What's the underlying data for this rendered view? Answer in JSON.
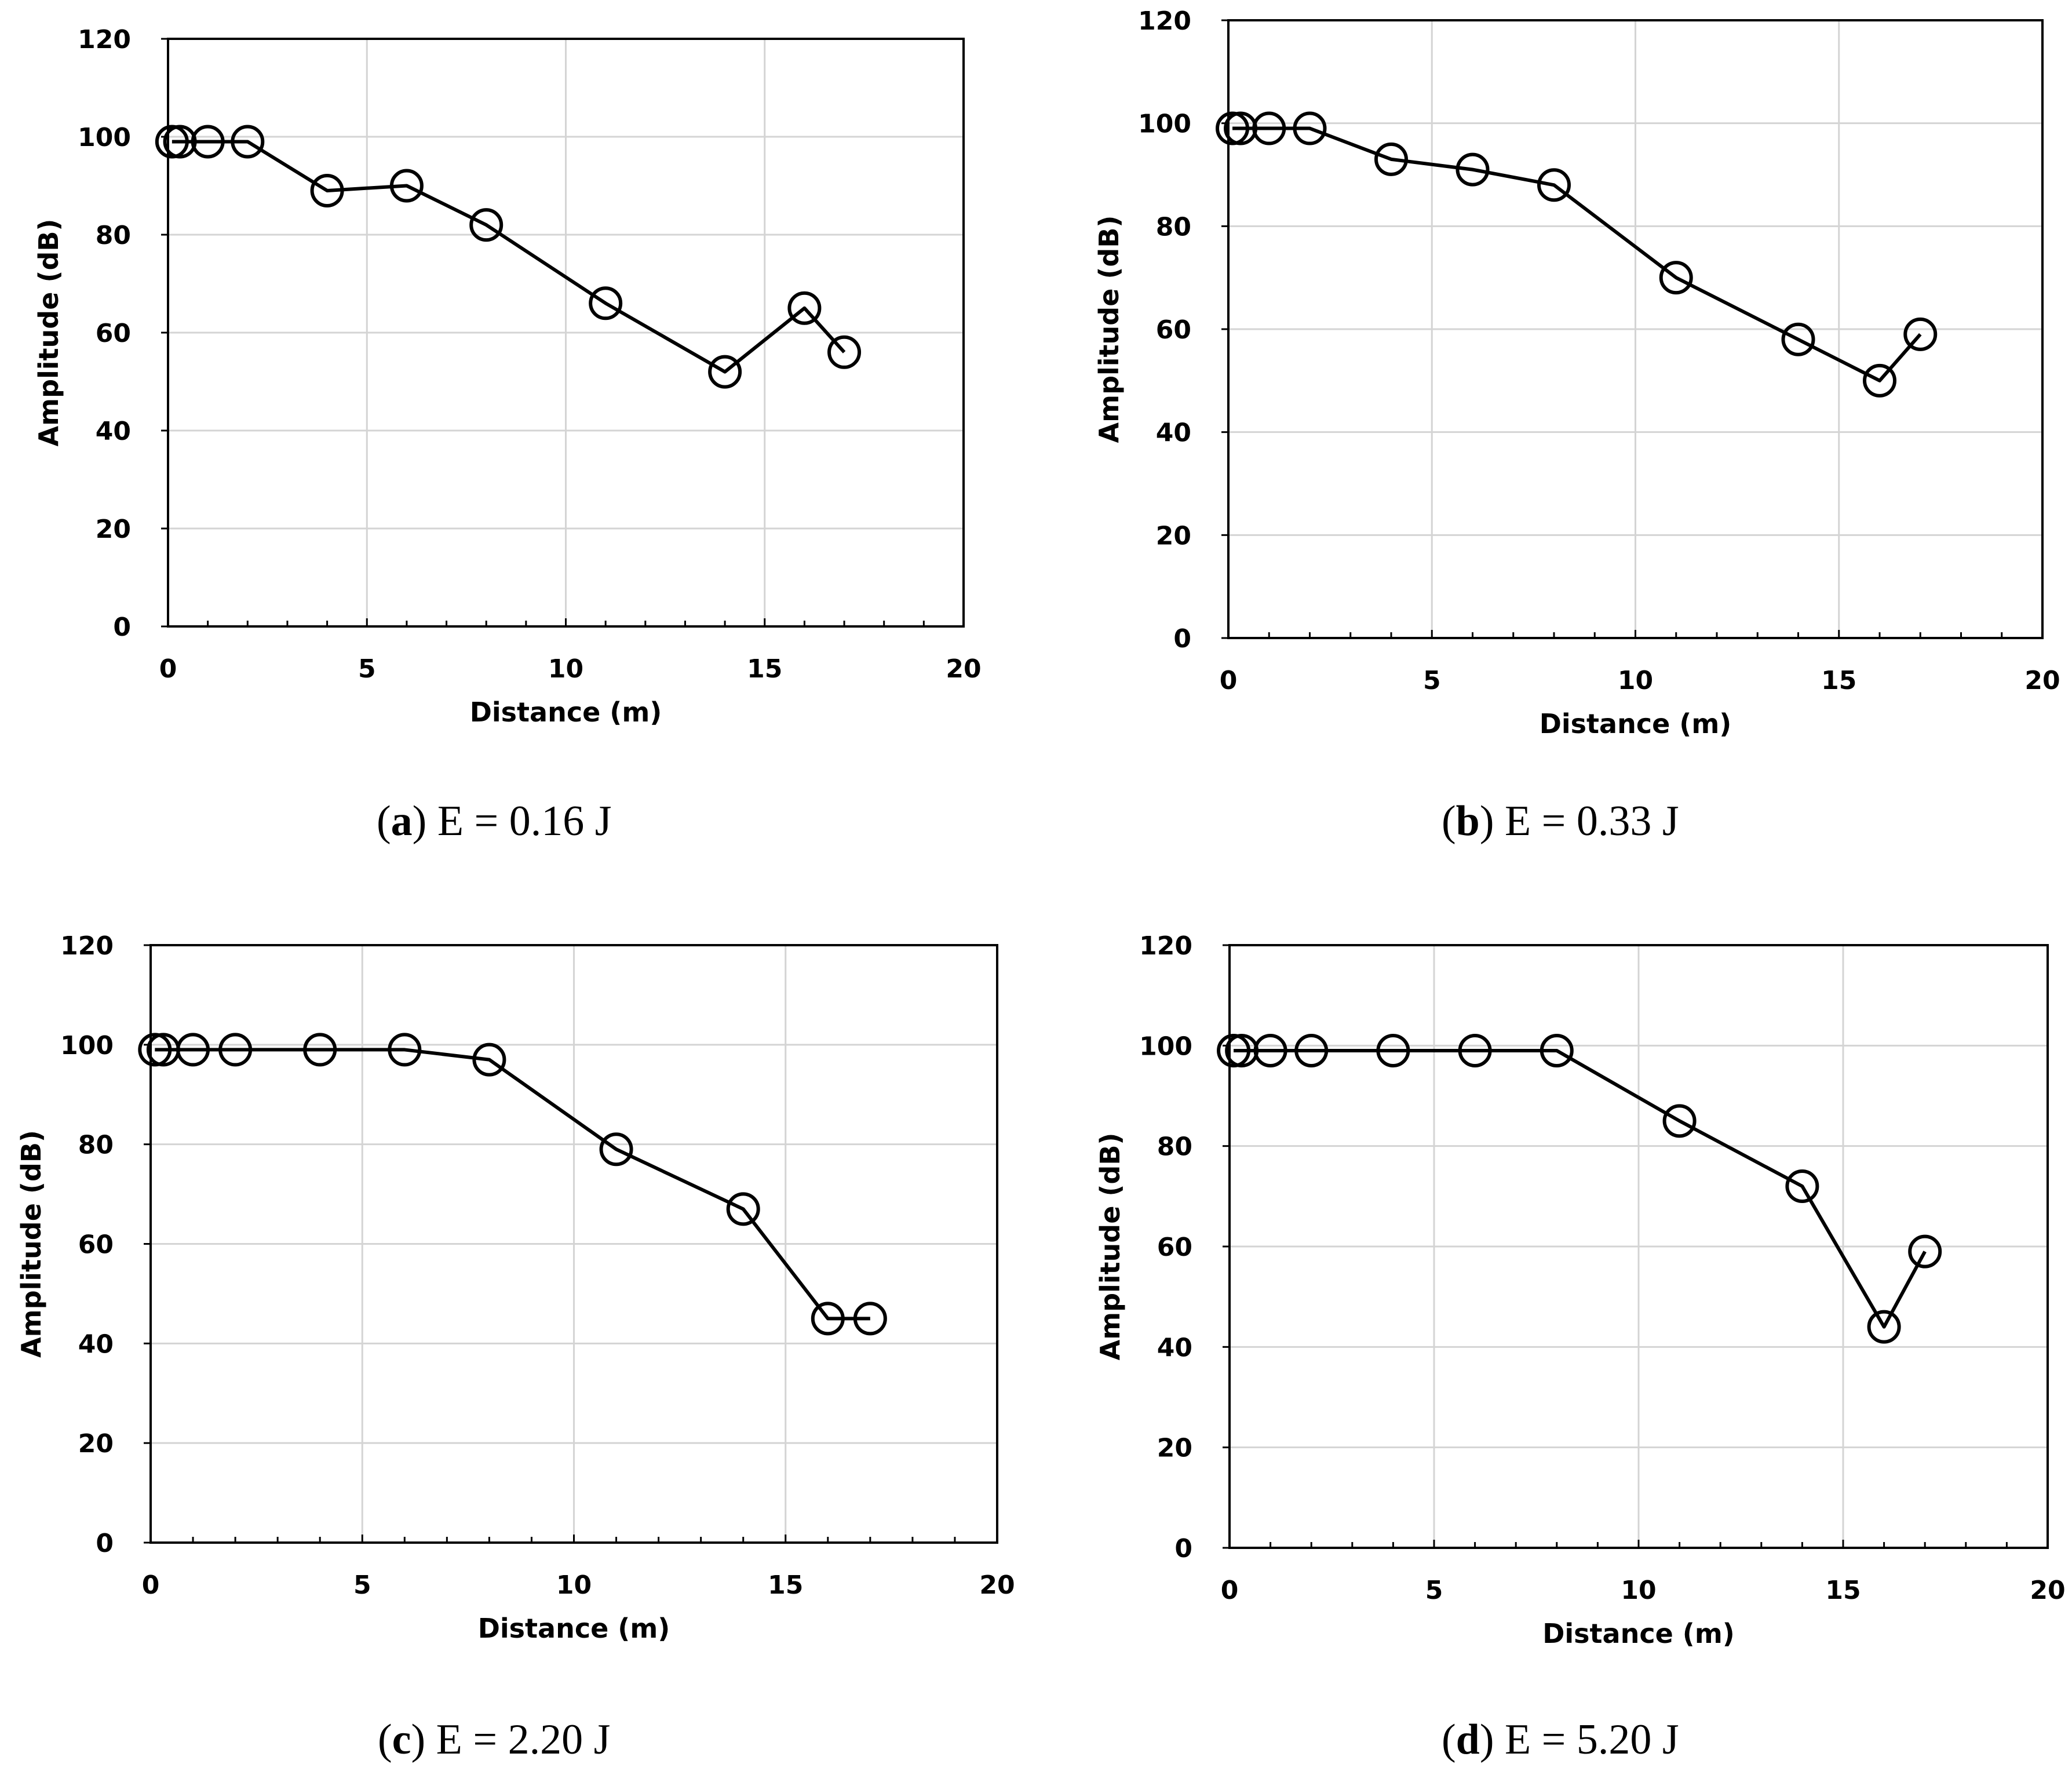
{
  "chart_data": [
    {
      "type": "line",
      "panel": "a",
      "caption_letter": "a",
      "caption_text": "E = 0.16 J",
      "xlabel": "Distance (m)",
      "ylabel": "Amplitude (dB)",
      "xlim": [
        0,
        20
      ],
      "ylim": [
        0,
        120
      ],
      "xticks": [
        "0",
        "5",
        "10",
        "15",
        "20"
      ],
      "yticks": [
        "0",
        "20",
        "40",
        "60",
        "80",
        "100",
        "120"
      ],
      "grid": true,
      "x": [
        0.1,
        0.3,
        1,
        2,
        4,
        6,
        8,
        11,
        14,
        16,
        17
      ],
      "y": [
        99,
        99,
        99,
        99,
        89,
        90,
        82,
        66,
        52,
        65,
        56
      ]
    },
    {
      "type": "line",
      "panel": "b",
      "caption_letter": "b",
      "caption_text": "E = 0.33 J",
      "xlabel": "Distance (m)",
      "ylabel": "Amplitude (dB)",
      "xlim": [
        0,
        20
      ],
      "ylim": [
        0,
        120
      ],
      "xticks": [
        "0",
        "5",
        "10",
        "15",
        "20"
      ],
      "yticks": [
        "0",
        "20",
        "40",
        "60",
        "80",
        "100",
        "120"
      ],
      "grid": true,
      "x": [
        0.1,
        0.3,
        1,
        2,
        4,
        6,
        8,
        11,
        14,
        16,
        17
      ],
      "y": [
        99,
        99,
        99,
        99,
        93,
        91,
        88,
        70,
        58,
        50,
        59
      ]
    },
    {
      "type": "line",
      "panel": "c",
      "caption_letter": "c",
      "caption_text": "E = 2.20 J",
      "xlabel": "Distance (m)",
      "ylabel": "Amplitude (dB)",
      "xlim": [
        0,
        20
      ],
      "ylim": [
        0,
        120
      ],
      "xticks": [
        "0",
        "5",
        "10",
        "15",
        "20"
      ],
      "yticks": [
        "0",
        "20",
        "40",
        "60",
        "80",
        "100",
        "120"
      ],
      "grid": true,
      "x": [
        0.1,
        0.3,
        1,
        2,
        4,
        6,
        8,
        11,
        14,
        16,
        17
      ],
      "y": [
        99,
        99,
        99,
        99,
        99,
        99,
        97,
        79,
        67,
        45,
        45
      ]
    },
    {
      "type": "line",
      "panel": "d",
      "caption_letter": "d",
      "caption_text": "E = 5.20 J",
      "xlabel": "Distance (m)",
      "ylabel": "Amplitude (dB)",
      "xlim": [
        0,
        20
      ],
      "ylim": [
        0,
        120
      ],
      "xticks": [
        "0",
        "5",
        "10",
        "15",
        "20"
      ],
      "yticks": [
        "0",
        "20",
        "40",
        "60",
        "80",
        "100",
        "120"
      ],
      "grid": true,
      "x": [
        0.1,
        0.3,
        1,
        2,
        4,
        6,
        8,
        11,
        14,
        16,
        17
      ],
      "y": [
        99,
        99,
        99,
        99,
        99,
        99,
        99,
        85,
        72,
        44,
        59
      ]
    }
  ]
}
